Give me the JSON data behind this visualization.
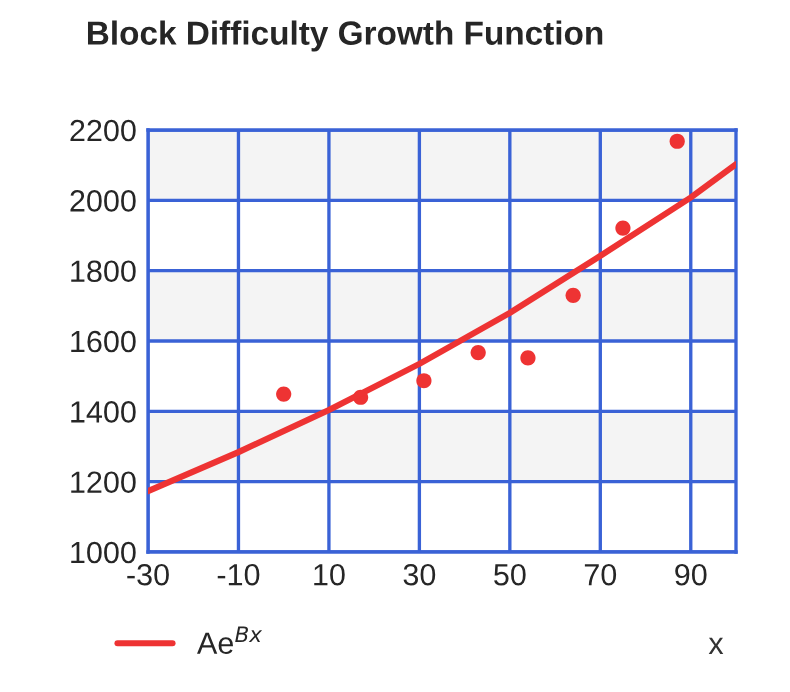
{
  "chart_data": {
    "type": "scatter",
    "title": "Block Difficulty Growth Function",
    "xlabel": "x",
    "xlim": [
      -30,
      100
    ],
    "xticks": [
      -30,
      -10,
      10,
      30,
      50,
      70,
      90
    ],
    "ylim": [
      1000,
      2200
    ],
    "yticks": [
      1000,
      1200,
      1400,
      1600,
      1800,
      2000,
      2200
    ],
    "grid": true,
    "legend": "bottom left",
    "bands": [
      {
        "axis": "y",
        "from": 1200,
        "to": 1400,
        "color": "#f4f4f4"
      },
      {
        "axis": "y",
        "from": 1600,
        "to": 1800,
        "color": "#f4f4f4"
      },
      {
        "axis": "y",
        "from": 2000,
        "to": 2200,
        "color": "#f4f4f4"
      }
    ],
    "series": [
      {
        "marker": "circle",
        "color": "#ee3333",
        "x": [
          0,
          17,
          31,
          43,
          54,
          64,
          75,
          87
        ],
        "values": [
          1449,
          1440,
          1487,
          1567,
          1552,
          1730,
          1921,
          2168
        ]
      },
      {
        "type": "line",
        "name": "Ae$^{Bx}$",
        "color": "#ee3333",
        "line_style": "solid",
        "marker": "none",
        "x": [
          -30,
          -10,
          10,
          30,
          50,
          70,
          90,
          100
        ],
        "values": [
          1173,
          1284,
          1404,
          1535,
          1680,
          1842,
          2008,
          2103
        ]
      }
    ]
  }
}
